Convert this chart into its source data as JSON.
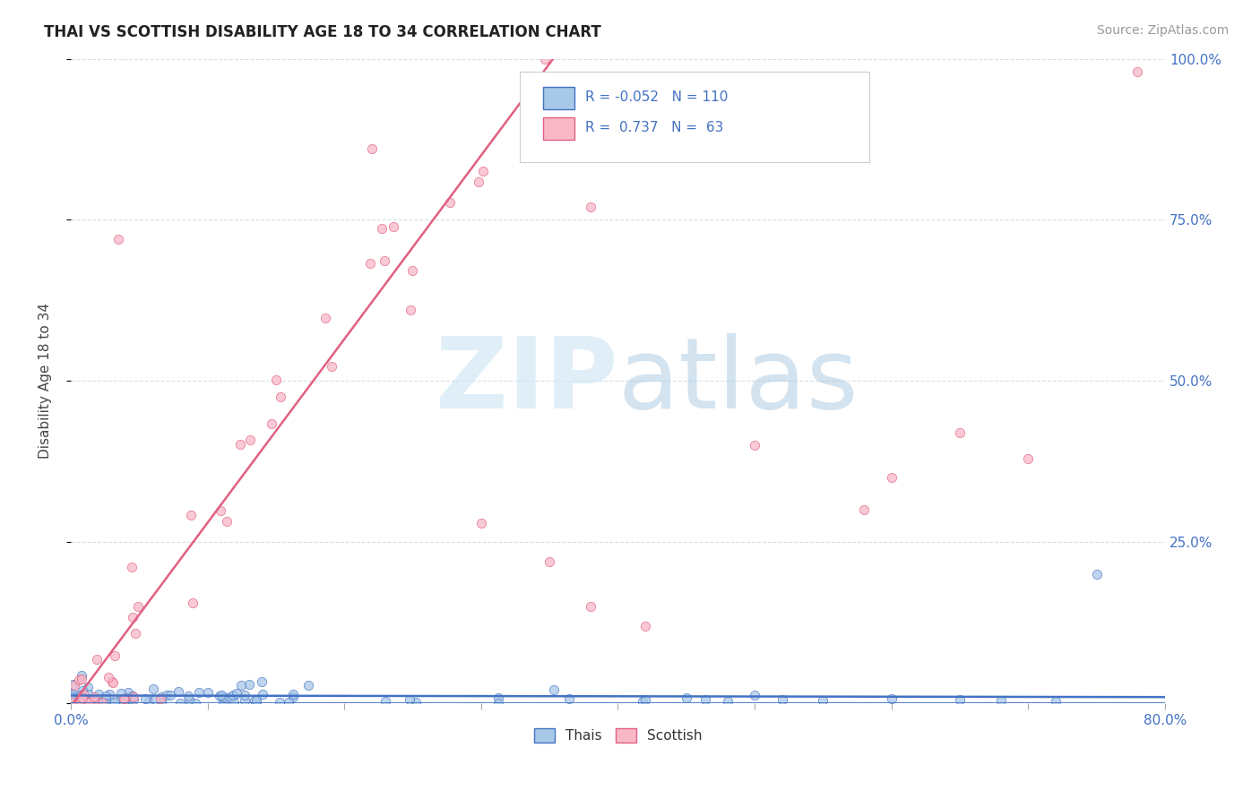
{
  "title": "THAI VS SCOTTISH DISABILITY AGE 18 TO 34 CORRELATION CHART",
  "source": "Source: ZipAtlas.com",
  "ylabel": "Disability Age 18 to 34",
  "legend_label_thais": "Thais",
  "legend_label_scottish": "Scottish",
  "r_thais": "-0.052",
  "n_thais": "110",
  "r_scottish": "0.737",
  "n_scottish": "63",
  "color_thais": "#a8c8e8",
  "color_scottish": "#f8b8c8",
  "color_line_thais": "#4472c4",
  "color_line_scottish": "#e06080",
  "xmin": 0.0,
  "xmax": 0.8,
  "ymin": 0.0,
  "ymax": 1.0,
  "yticks": [
    0.0,
    0.25,
    0.5,
    0.75,
    1.0
  ],
  "ytick_labels": [
    "",
    "25.0%",
    "50.0%",
    "75.0%",
    "100.0%"
  ],
  "thais_line_slope": -0.003,
  "thais_line_intercept": 0.012,
  "scottish_line_slope": 2.85,
  "scottish_line_intercept": -0.005
}
